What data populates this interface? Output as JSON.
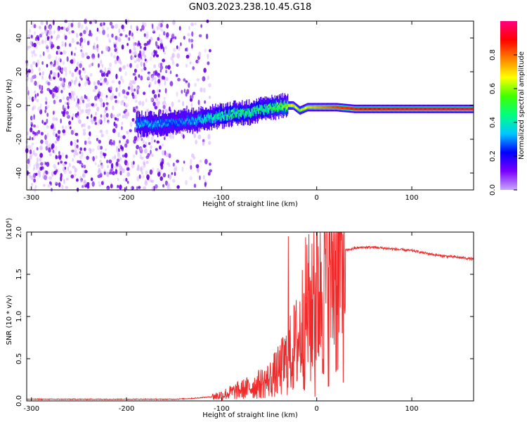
{
  "title": "GN03.2023.238.10.45.G18",
  "colors": {
    "snr_line": "#ee2a2a",
    "scatter_high": "#6a00e6",
    "scatter_low": "#d8b6ff"
  },
  "chart_data": [
    {
      "type": "heatmap",
      "xlabel": "Height of straight line (km)",
      "ylabel": "Frequency (Hz)",
      "xlim": [
        -305,
        165
      ],
      "ylim": [
        -50,
        50
      ],
      "x_ticks": [
        -300,
        -200,
        -100,
        0,
        100
      ],
      "y_ticks": [
        -40,
        -20,
        0,
        20,
        40
      ],
      "colorbar": {
        "label": "Normalized spectral amplitude",
        "range": [
          0,
          1
        ],
        "ticks": [
          0.0,
          0.2,
          0.4,
          0.6,
          0.8
        ],
        "tick_labels": [
          "0.0",
          "0.2",
          "0.4",
          "0.6",
          "0.8"
        ],
        "colormap": [
          "#c8a8ff",
          "#7a00ff",
          "#0000ff",
          "#00c8ff",
          "#00ff80",
          "#40ff00",
          "#ffff00",
          "#ff8000",
          "#ff0000",
          "#ff0080"
        ]
      },
      "ridge": {
        "x": [
          -190,
          -170,
          -150,
          -130,
          -110,
          -90,
          -70,
          -55,
          -45,
          -35,
          -25,
          -18,
          -10,
          0,
          20,
          40,
          60,
          80,
          100,
          120,
          140,
          165
        ],
        "y": [
          -11,
          -11,
          -10,
          -9,
          -7,
          -5,
          -4,
          -2,
          -1,
          0,
          0,
          -3,
          -1,
          -1,
          -1,
          -2,
          -2,
          -2,
          -2,
          -2,
          -2,
          -2
        ],
        "amplitude": [
          0.35,
          0.35,
          0.3,
          0.35,
          0.45,
          0.5,
          0.5,
          0.5,
          0.55,
          0.6,
          0.7,
          0.6,
          0.7,
          0.75,
          0.85,
          0.88,
          0.9,
          0.92,
          0.93,
          0.94,
          0.94,
          0.95
        ]
      },
      "noise_region_x": [
        -305,
        -120
      ]
    },
    {
      "type": "line",
      "xlabel": "Height of straight line (km)",
      "ylabel": "SNR (10 * v/v)",
      "multiplier_label": "(x10⁴)",
      "xlim": [
        -305,
        165
      ],
      "ylim": [
        0,
        2.0
      ],
      "x_ticks": [
        -300,
        -200,
        -100,
        0,
        100
      ],
      "y_ticks": [
        0.0,
        0.5,
        1.0,
        1.5,
        2.0
      ],
      "y_tick_labels": [
        "0.0",
        "0.5",
        "1.0",
        "1.5",
        "2.0"
      ],
      "series": [
        {
          "x": [
            -305,
            -250,
            -200,
            -150,
            -130,
            -110,
            -100,
            -90,
            -80,
            -70,
            -60,
            -50,
            -40,
            -30,
            -20,
            -10,
            -5,
            0,
            10,
            20,
            30,
            40,
            50,
            60,
            70,
            80,
            90,
            100,
            110,
            120,
            130,
            140,
            150,
            165
          ],
          "values": [
            0.02,
            0.02,
            0.02,
            0.02,
            0.03,
            0.05,
            0.07,
            0.1,
            0.13,
            0.16,
            0.2,
            0.25,
            0.35,
            0.5,
            0.7,
            1.1,
            1.0,
            1.35,
            1.55,
            1.7,
            1.78,
            1.81,
            1.82,
            1.82,
            1.81,
            1.8,
            1.79,
            1.78,
            1.76,
            1.74,
            1.72,
            1.71,
            1.7,
            1.68
          ]
        }
      ],
      "spikes": [
        {
          "x": -30,
          "value": 1.95
        },
        {
          "x": -3,
          "value": 2.0
        },
        {
          "x": -2,
          "value": 0.05
        }
      ]
    }
  ]
}
